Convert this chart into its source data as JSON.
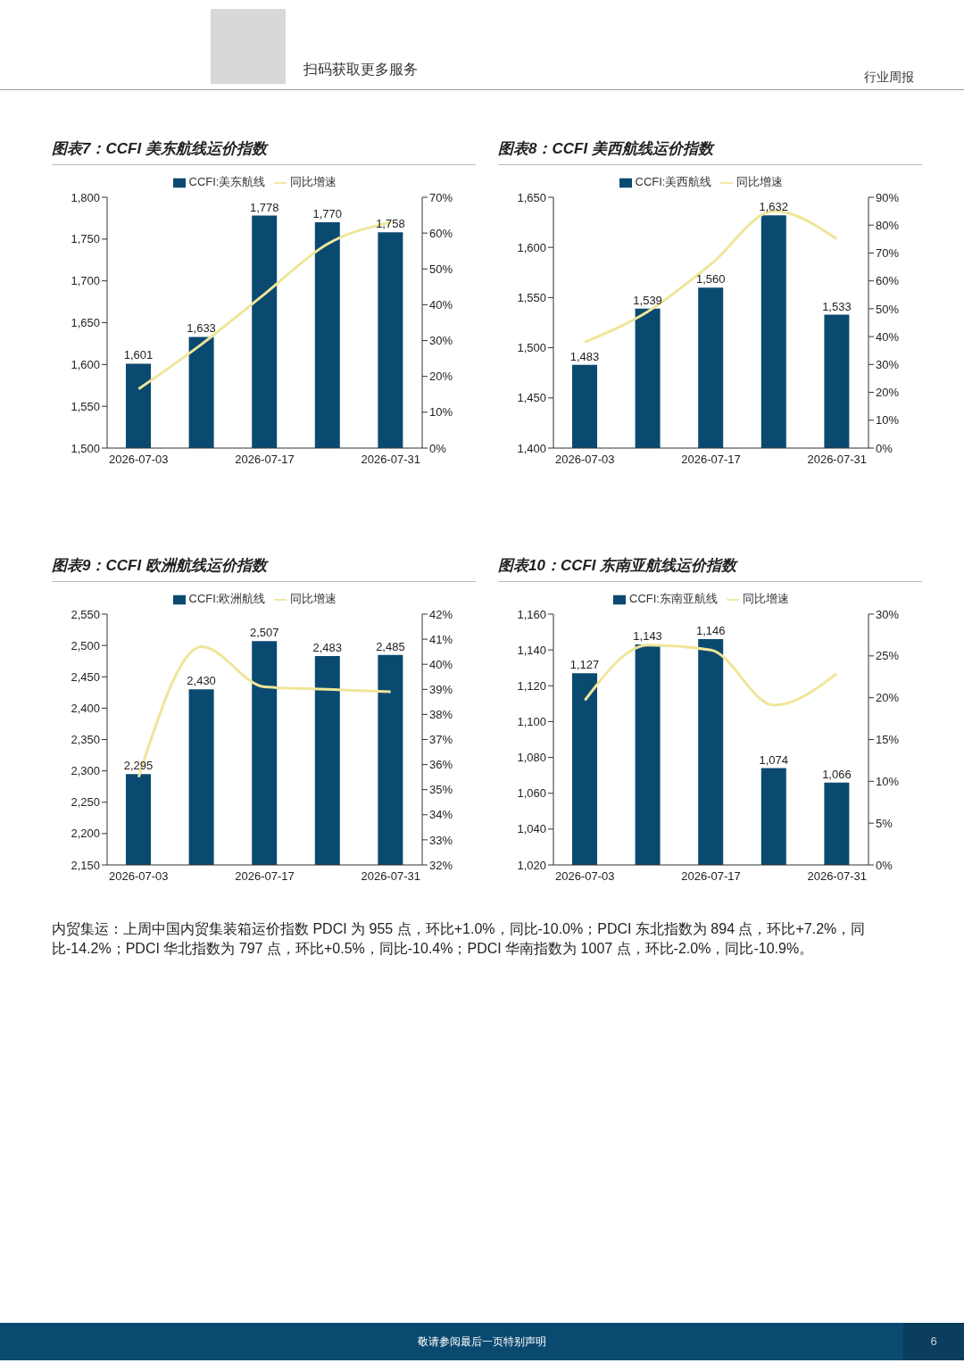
{
  "chart_data": [
    {
      "type": "bar",
      "title": "图表7：CCFI 美东航线运价指数",
      "categories": [
        "2026-07-03",
        null,
        "2026-07-17",
        null,
        "2026-07-31"
      ],
      "series": [
        {
          "name": "CCFI:美东航线",
          "type": "bar",
          "color": "#0b4a70",
          "values": [
            1601,
            1633,
            1778,
            1770,
            1758
          ],
          "value_labels": [
            "1,601",
            "1,633",
            "1,778",
            "1,770",
            "1,758"
          ]
        },
        {
          "name": "同比增速",
          "type": "line",
          "axis": "y2",
          "color": "#efe59a",
          "values": [
            16.5,
            29,
            43,
            57,
            63
          ]
        }
      ],
      "ylim": [
        1500,
        1800
      ],
      "yticks": [
        {
          "value": 1500,
          "label": "1,500"
        },
        {
          "value": 1550,
          "label": "1,550"
        },
        {
          "value": 1600,
          "label": "1,600"
        },
        {
          "value": 1650,
          "label": "1,650"
        },
        {
          "value": 1700,
          "label": "1,700"
        },
        {
          "value": 1750,
          "label": "1,750"
        },
        {
          "value": 1800,
          "label": "1,800"
        }
      ],
      "y2lim": [
        0,
        70
      ],
      "y2ticks": [
        {
          "value": 0,
          "label": "0%"
        },
        {
          "value": 10,
          "label": "10%"
        },
        {
          "value": 20,
          "label": "20%"
        },
        {
          "value": 30,
          "label": "30%"
        },
        {
          "value": 40,
          "label": "40%"
        },
        {
          "value": 50,
          "label": "50%"
        },
        {
          "value": 60,
          "label": "60%"
        },
        {
          "value": 70,
          "label": "70%"
        }
      ],
      "legend": "top",
      "grid": false
    },
    {
      "type": "bar",
      "title": "图表8：CCFI 美西航线运价指数",
      "categories": [
        "2026-07-03",
        null,
        "2026-07-17",
        null,
        "2026-07-31"
      ],
      "series": [
        {
          "name": "CCFI:美西航线",
          "type": "bar",
          "color": "#0b4a70",
          "values": [
            1483,
            1539,
            1560,
            1632,
            1533
          ],
          "value_labels": [
            "1,483",
            "1,539",
            "1,560",
            "1,632",
            "1,533"
          ]
        },
        {
          "name": "同比增速",
          "type": "line",
          "axis": "y2",
          "color": "#efe59a",
          "values": [
            38,
            49,
            66,
            85,
            75
          ]
        }
      ],
      "ylim": [
        1400,
        1650
      ],
      "yticks": [
        {
          "value": 1400,
          "label": "1,400"
        },
        {
          "value": 1450,
          "label": "1,450"
        },
        {
          "value": 1500,
          "label": "1,500"
        },
        {
          "value": 1550,
          "label": "1,550"
        },
        {
          "value": 1600,
          "label": "1,600"
        },
        {
          "value": 1650,
          "label": "1,650"
        }
      ],
      "y2lim": [
        0,
        90
      ],
      "y2ticks": [
        {
          "value": 0,
          "label": "0%"
        },
        {
          "value": 10,
          "label": "10%"
        },
        {
          "value": 20,
          "label": "20%"
        },
        {
          "value": 30,
          "label": "30%"
        },
        {
          "value": 40,
          "label": "40%"
        },
        {
          "value": 50,
          "label": "50%"
        },
        {
          "value": 60,
          "label": "60%"
        },
        {
          "value": 70,
          "label": "70%"
        },
        {
          "value": 80,
          "label": "80%"
        },
        {
          "value": 90,
          "label": "90%"
        }
      ],
      "legend": "top",
      "grid": false
    },
    {
      "type": "bar",
      "title": "图表9：CCFI 欧洲航线运价指数",
      "categories": [
        "2026-07-03",
        null,
        "2026-07-17",
        null,
        "2026-07-31"
      ],
      "series": [
        {
          "name": "CCFI:欧洲航线",
          "type": "bar",
          "color": "#0b4a70",
          "values": [
            2295,
            2430,
            2507,
            2483,
            2485
          ],
          "value_labels": [
            "2,295",
            "2,430",
            "2,507",
            "2,483",
            "2,485"
          ]
        },
        {
          "name": "同比增速",
          "type": "line",
          "axis": "y2",
          "color": "#efe59a",
          "values": [
            35.5,
            40.7,
            39.1,
            39.0,
            38.9
          ]
        }
      ],
      "ylim": [
        2150,
        2550
      ],
      "yticks": [
        {
          "value": 2150,
          "label": "2,150"
        },
        {
          "value": 2200,
          "label": "2,200"
        },
        {
          "value": 2250,
          "label": "2,250"
        },
        {
          "value": 2300,
          "label": "2,300"
        },
        {
          "value": 2350,
          "label": "2,350"
        },
        {
          "value": 2400,
          "label": "2,400"
        },
        {
          "value": 2450,
          "label": "2,450"
        },
        {
          "value": 2500,
          "label": "2,500"
        },
        {
          "value": 2550,
          "label": "2,550"
        }
      ],
      "y2lim": [
        32,
        42
      ],
      "y2ticks": [
        {
          "value": 32,
          "label": "32%"
        },
        {
          "value": 33,
          "label": "33%"
        },
        {
          "value": 34,
          "label": "34%"
        },
        {
          "value": 35,
          "label": "35%"
        },
        {
          "value": 36,
          "label": "36%"
        },
        {
          "value": 37,
          "label": "37%"
        },
        {
          "value": 38,
          "label": "38%"
        },
        {
          "value": 39,
          "label": "39%"
        },
        {
          "value": 40,
          "label": "40%"
        },
        {
          "value": 41,
          "label": "41%"
        },
        {
          "value": 42,
          "label": "42%"
        }
      ],
      "legend": "top",
      "grid": false
    },
    {
      "type": "bar",
      "title": "图表10：CCFI 东南亚航线运价指数",
      "categories": [
        "2026-07-03",
        null,
        "2026-07-17",
        null,
        "2026-07-31"
      ],
      "series": [
        {
          "name": "CCFI:东南亚航线",
          "type": "bar",
          "color": "#0b4a70",
          "values": [
            1127,
            1143,
            1146,
            1074,
            1066
          ],
          "value_labels": [
            "1,127",
            "1,143",
            "1,146",
            "1,074",
            "1,066"
          ]
        },
        {
          "name": "同比增速",
          "type": "line",
          "axis": "y2",
          "color": "#efe59a",
          "values": [
            19.7,
            26.3,
            25.7,
            19.1,
            22.9
          ]
        }
      ],
      "ylim": [
        1020,
        1160
      ],
      "yticks": [
        {
          "value": 1020,
          "label": "1,020"
        },
        {
          "value": 1040,
          "label": "1,040"
        },
        {
          "value": 1060,
          "label": "1,060"
        },
        {
          "value": 1080,
          "label": "1,080"
        },
        {
          "value": 1100,
          "label": "1,100"
        },
        {
          "value": 1120,
          "label": "1,120"
        },
        {
          "value": 1140,
          "label": "1,140"
        },
        {
          "value": 1160,
          "label": "1,160"
        }
      ],
      "y2lim": [
        0,
        30
      ],
      "y2ticks": [
        {
          "value": 0,
          "label": "0%"
        },
        {
          "value": 5,
          "label": "5%"
        },
        {
          "value": 10,
          "label": "10%"
        },
        {
          "value": 15,
          "label": "15%"
        },
        {
          "value": 20,
          "label": "20%"
        },
        {
          "value": 25,
          "label": "25%"
        },
        {
          "value": 30,
          "label": "30%"
        }
      ],
      "legend": "top",
      "grid": false
    },
    {
      "type": "other",
      "annotations": [
        "扫码获取更多服务",
        "行业周报",
        "内贸集运：上周中国内贸集装箱运价指数 PDCI 为 955 点，环比+1.0%，同比-10.0%；PDCI 东北指数为 894 点，环比+7.2%，同比-14.2%；PDCI 华北指数为 797 点，环比+0.5%，同比-10.4%；PDCI 华南指数为 1007 点，环比-2.0%，同比-10.9%。",
        "敬请参阅最后一页特别声明",
        "6"
      ]
    }
  ]
}
